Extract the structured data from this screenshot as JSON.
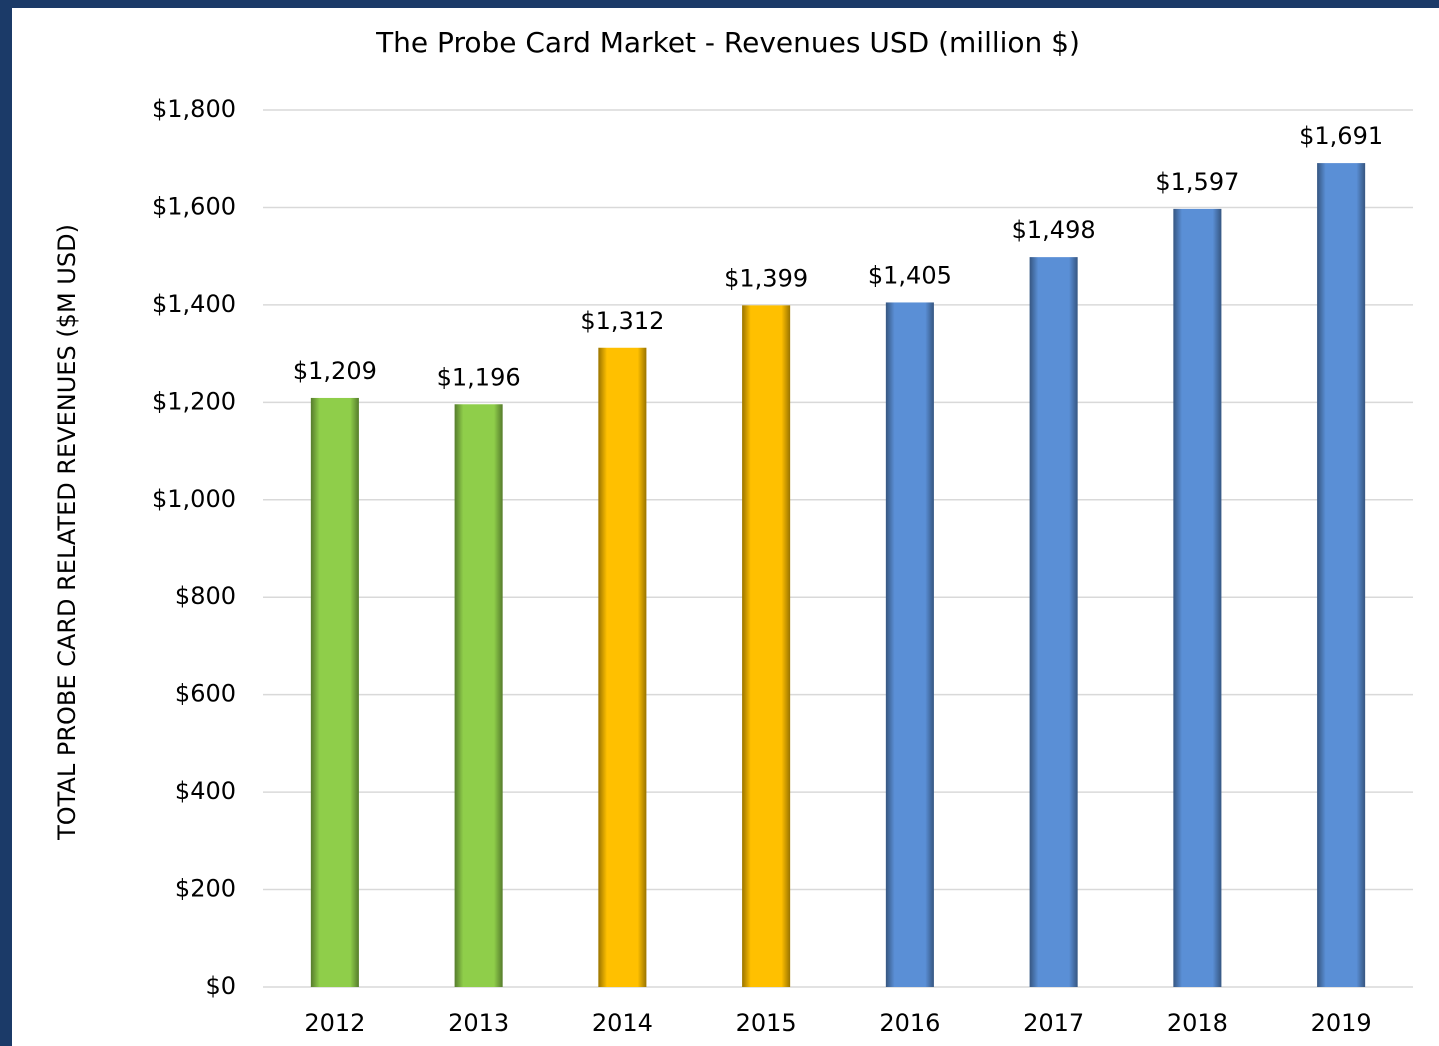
{
  "chart_data": {
    "type": "bar",
    "title": "The Probe Card Market - Revenues USD (million $)",
    "y_label": "TOTAL PROBE CARD RELATED REVENUES ($M USD)",
    "categories": [
      "2012",
      "2013",
      "2014",
      "2015",
      "2016",
      "2017",
      "2018",
      "2019"
    ],
    "values": [
      1209,
      1196,
      1312,
      1399,
      1405,
      1498,
      1597,
      1691
    ],
    "value_labels": [
      "$1,209",
      "$1,196",
      "$1,312",
      "$1,399",
      "$1,405",
      "$1,498",
      "$1,597",
      "$1,691"
    ],
    "colors": [
      "#8fce4a",
      "#8fce4a",
      "#ffc000",
      "#ffc000",
      "#5a8fd6",
      "#5a8fd6",
      "#5a8fd6",
      "#5a8fd6"
    ],
    "ylim": [
      0,
      1800
    ],
    "yticks": [
      {
        "value": 0,
        "label": "$0"
      },
      {
        "value": 200,
        "label": "$200"
      },
      {
        "value": 400,
        "label": "$400"
      },
      {
        "value": 600,
        "label": "$600"
      },
      {
        "value": 800,
        "label": "$800"
      },
      {
        "value": 1000,
        "label": "$1,000"
      },
      {
        "value": 1200,
        "label": "$1,200"
      },
      {
        "value": 1400,
        "label": "$1,400"
      },
      {
        "value": 1600,
        "label": "$1,600"
      },
      {
        "value": 1800,
        "label": "$1,800"
      }
    ],
    "grid": true
  }
}
